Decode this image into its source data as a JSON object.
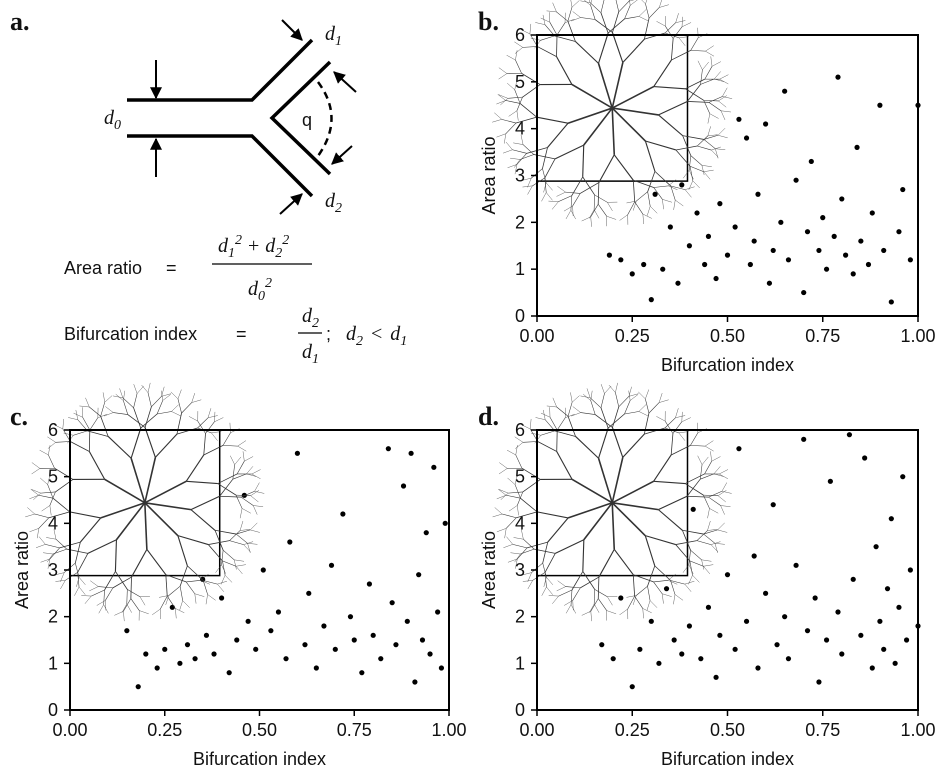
{
  "diagram": {
    "panel_label": "a.",
    "angle_label": "q",
    "diameters": [
      {
        "symbol": "d",
        "sub": "0"
      },
      {
        "symbol": "d",
        "sub": "1"
      },
      {
        "symbol": "d",
        "sub": "2"
      }
    ],
    "area_ratio": {
      "label": "Area ratio",
      "sign": "=",
      "numerator": [
        {
          "symbol": "d",
          "sub": "1",
          "sup": "2"
        },
        "+",
        {
          "symbol": "d",
          "sub": "2",
          "sup": "2"
        }
      ],
      "denominator": {
        "symbol": "d",
        "sub": "0",
        "sup": "2"
      }
    },
    "bifurcation_index": {
      "label": "Bifurcation index",
      "sign": "=",
      "numerator": {
        "symbol": "d",
        "sub": "2"
      },
      "denominator": {
        "symbol": "d",
        "sub": "1"
      },
      "separator": ";",
      "condition": [
        {
          "symbol": "d",
          "sub": "2"
        },
        "<",
        {
          "symbol": "d",
          "sub": "1"
        }
      ]
    }
  },
  "chart_data": [
    {
      "type": "scatter",
      "panel_label": "b.",
      "x_label": "Bifurcation index",
      "y_label": "Area ratio",
      "color": "#000000",
      "xlim": [
        0,
        1
      ],
      "ylim": [
        0,
        6
      ],
      "xticks": [
        {
          "value": 0,
          "label": "0.00"
        },
        {
          "value": 0.25,
          "label": "0.25"
        },
        {
          "value": 0.5,
          "label": "0.50"
        },
        {
          "value": 0.75,
          "label": "0.75"
        },
        {
          "value": 1,
          "label": "1.00"
        }
      ],
      "yticks": [
        0,
        1,
        2,
        3,
        4,
        5,
        6
      ],
      "x": [
        0.19,
        0.22,
        0.25,
        0.28,
        0.3,
        0.31,
        0.33,
        0.35,
        0.37,
        0.38,
        0.4,
        0.42,
        0.44,
        0.45,
        0.47,
        0.48,
        0.5,
        0.52,
        0.53,
        0.55,
        0.56,
        0.57,
        0.58,
        0.6,
        0.61,
        0.62,
        0.64,
        0.65,
        0.66,
        0.68,
        0.7,
        0.71,
        0.72,
        0.74,
        0.75,
        0.76,
        0.78,
        0.79,
        0.8,
        0.81,
        0.83,
        0.84,
        0.85,
        0.87,
        0.88,
        0.9,
        0.91,
        0.93,
        0.95,
        0.96,
        0.98,
        1.0
      ],
      "y": [
        1.3,
        1.2,
        0.9,
        1.1,
        0.35,
        2.6,
        1.0,
        1.9,
        0.7,
        2.8,
        1.5,
        2.2,
        1.1,
        1.7,
        0.8,
        2.4,
        1.3,
        1.9,
        4.2,
        3.8,
        1.1,
        1.6,
        2.6,
        4.1,
        0.7,
        1.4,
        2.0,
        4.8,
        1.2,
        2.9,
        0.5,
        1.8,
        3.3,
        1.4,
        2.1,
        1.0,
        1.7,
        5.1,
        2.5,
        1.3,
        0.9,
        3.6,
        1.6,
        1.1,
        2.2,
        4.5,
        1.4,
        0.3,
        1.8,
        2.7,
        1.2,
        4.5
      ]
    },
    {
      "type": "scatter",
      "panel_label": "c.",
      "x_label": "Bifurcation index",
      "y_label": "Area ratio",
      "color": "#000000",
      "xlim": [
        0,
        1
      ],
      "ylim": [
        0,
        6
      ],
      "xticks": [
        {
          "value": 0,
          "label": "0.00"
        },
        {
          "value": 0.25,
          "label": "0.25"
        },
        {
          "value": 0.5,
          "label": "0.50"
        },
        {
          "value": 0.75,
          "label": "0.75"
        },
        {
          "value": 1,
          "label": "1.00"
        }
      ],
      "yticks": [
        0,
        1,
        2,
        3,
        4,
        5,
        6
      ],
      "x": [
        0.15,
        0.18,
        0.2,
        0.23,
        0.25,
        0.27,
        0.29,
        0.31,
        0.33,
        0.35,
        0.36,
        0.38,
        0.4,
        0.42,
        0.44,
        0.46,
        0.47,
        0.49,
        0.51,
        0.53,
        0.55,
        0.57,
        0.58,
        0.6,
        0.62,
        0.63,
        0.65,
        0.67,
        0.69,
        0.7,
        0.72,
        0.74,
        0.75,
        0.77,
        0.79,
        0.8,
        0.82,
        0.84,
        0.85,
        0.86,
        0.88,
        0.89,
        0.9,
        0.91,
        0.92,
        0.93,
        0.94,
        0.95,
        0.96,
        0.97,
        0.98,
        0.99
      ],
      "y": [
        1.7,
        0.5,
        1.2,
        0.9,
        1.3,
        2.2,
        1.0,
        1.4,
        1.1,
        2.8,
        1.6,
        1.2,
        2.4,
        0.8,
        1.5,
        4.6,
        1.9,
        1.3,
        3.0,
        1.7,
        2.1,
        1.1,
        3.6,
        5.5,
        1.4,
        2.5,
        0.9,
        1.8,
        3.1,
        1.3,
        4.2,
        2.0,
        1.5,
        0.8,
        2.7,
        1.6,
        1.1,
        5.6,
        2.3,
        1.4,
        4.8,
        1.9,
        5.5,
        0.6,
        2.9,
        1.5,
        3.8,
        1.2,
        5.2,
        2.1,
        0.9,
        4.0
      ]
    },
    {
      "type": "scatter",
      "panel_label": "d.",
      "x_label": "Bifurcation index",
      "y_label": "Area ratio",
      "color": "#000000",
      "xlim": [
        0,
        1
      ],
      "ylim": [
        0,
        6
      ],
      "xticks": [
        {
          "value": 0,
          "label": "0.00"
        },
        {
          "value": 0.25,
          "label": "0.25"
        },
        {
          "value": 0.5,
          "label": "0.50"
        },
        {
          "value": 0.75,
          "label": "0.75"
        },
        {
          "value": 1,
          "label": "1.00"
        }
      ],
      "yticks": [
        0,
        1,
        2,
        3,
        4,
        5,
        6
      ],
      "x": [
        0.17,
        0.2,
        0.22,
        0.25,
        0.27,
        0.3,
        0.32,
        0.34,
        0.36,
        0.38,
        0.4,
        0.41,
        0.43,
        0.45,
        0.47,
        0.48,
        0.5,
        0.52,
        0.53,
        0.55,
        0.57,
        0.58,
        0.6,
        0.62,
        0.63,
        0.65,
        0.66,
        0.68,
        0.7,
        0.71,
        0.73,
        0.74,
        0.76,
        0.77,
        0.79,
        0.8,
        0.82,
        0.83,
        0.85,
        0.86,
        0.88,
        0.89,
        0.9,
        0.91,
        0.92,
        0.93,
        0.94,
        0.95,
        0.96,
        0.97,
        0.98,
        1.0
      ],
      "y": [
        1.4,
        1.1,
        2.4,
        0.5,
        1.3,
        1.9,
        1.0,
        2.6,
        1.5,
        1.2,
        1.8,
        4.3,
        1.1,
        2.2,
        0.7,
        1.6,
        2.9,
        1.3,
        5.6,
        1.9,
        3.3,
        0.9,
        2.5,
        4.4,
        1.4,
        2.0,
        1.1,
        3.1,
        5.8,
        1.7,
        2.4,
        0.6,
        1.5,
        4.9,
        2.1,
        1.2,
        5.9,
        2.8,
        1.6,
        5.4,
        0.9,
        3.5,
        1.9,
        1.3,
        2.6,
        4.1,
        1.0,
        2.2,
        5.0,
        1.5,
        3.0,
        1.8
      ]
    }
  ]
}
